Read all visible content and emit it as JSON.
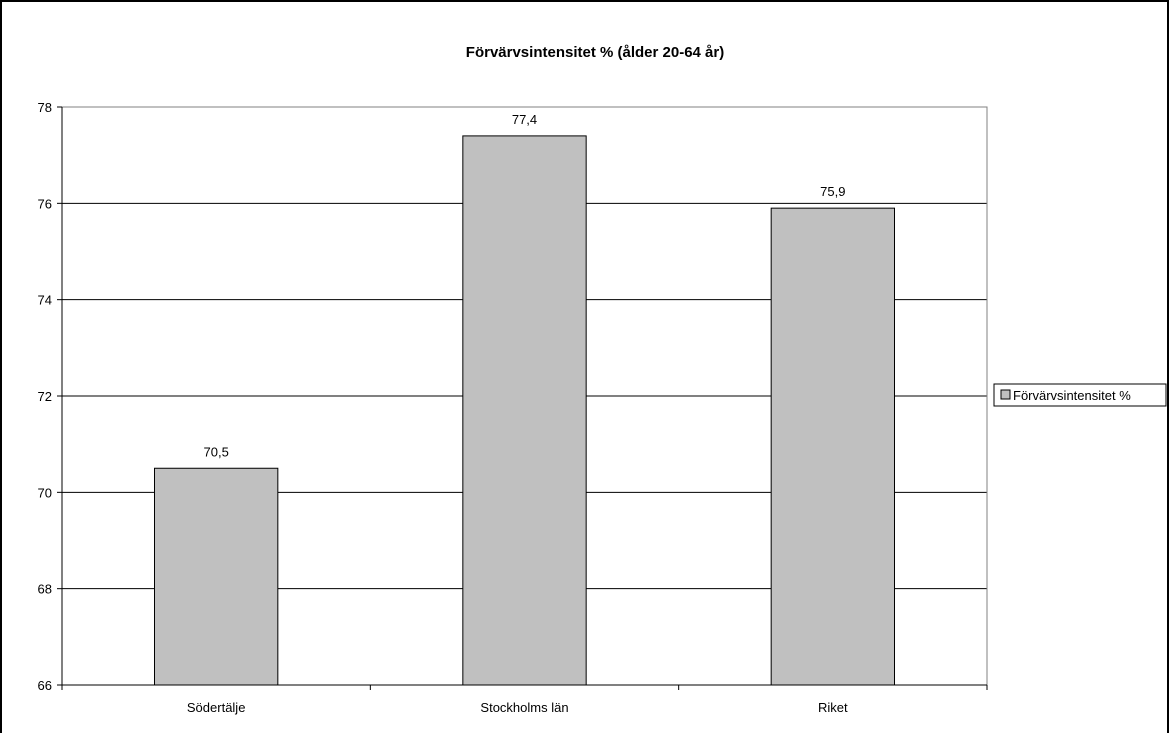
{
  "chart_data": {
    "type": "bar",
    "title": "Förvärvsintensitet % (ålder 20-64 år)",
    "xlabel": "",
    "ylabel": "",
    "categories": [
      "Södertälje",
      "Stockholms län",
      "Riket"
    ],
    "series": [
      {
        "name": "Förvärvsintensitet %",
        "values": [
          70.5,
          77.4,
          75.9
        ],
        "color": "#c0c0c0"
      }
    ],
    "data_labels": [
      "70,5",
      "77,4",
      "75,9"
    ],
    "ylim": [
      66,
      78
    ],
    "yticks": [
      66,
      68,
      70,
      72,
      74,
      76,
      78
    ],
    "grid": true,
    "legend_position": "right"
  }
}
